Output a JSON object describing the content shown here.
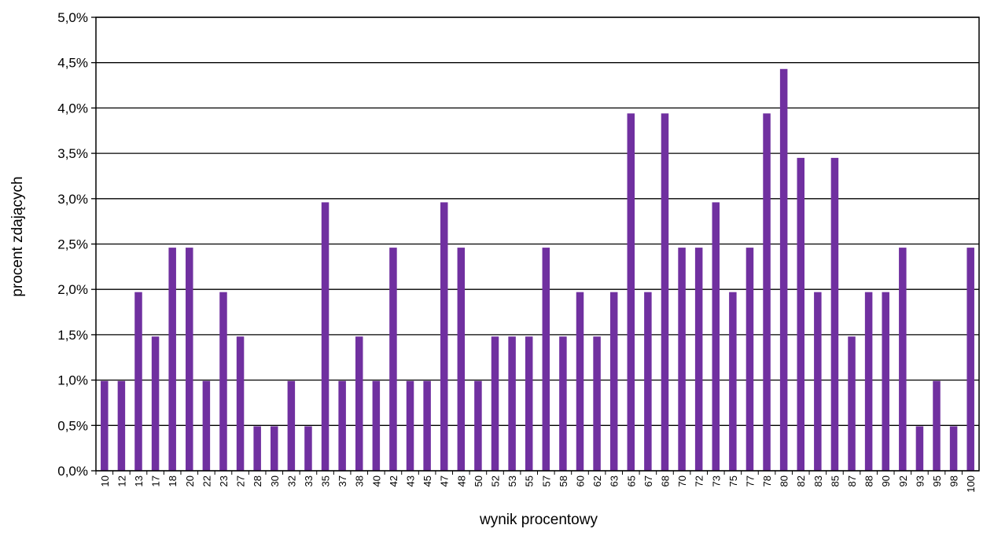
{
  "chart_data": {
    "type": "bar",
    "title": "",
    "xlabel": "wynik procentowy",
    "ylabel": "procent zdających",
    "ylim": [
      0,
      5
    ],
    "y_ticks": [
      0,
      0.5,
      1,
      1.5,
      2,
      2.5,
      3,
      3.5,
      4,
      4.5,
      5
    ],
    "y_tick_labels": [
      "0,0%",
      "0,5%",
      "1,0%",
      "1,5%",
      "2,0%",
      "2,5%",
      "3,0%",
      "3,5%",
      "4,0%",
      "4,5%",
      "5,0%"
    ],
    "grid": true,
    "categories": [
      "10",
      "12",
      "13",
      "17",
      "18",
      "20",
      "22",
      "23",
      "27",
      "28",
      "30",
      "32",
      "33",
      "35",
      "37",
      "38",
      "40",
      "42",
      "43",
      "45",
      "47",
      "48",
      "50",
      "52",
      "53",
      "55",
      "57",
      "58",
      "60",
      "62",
      "63",
      "65",
      "67",
      "68",
      "70",
      "72",
      "73",
      "75",
      "77",
      "78",
      "80",
      "82",
      "83",
      "85",
      "87",
      "88",
      "90",
      "92",
      "93",
      "95",
      "98",
      "100"
    ],
    "values": [
      0.99,
      0.99,
      1.97,
      1.48,
      2.46,
      2.46,
      0.99,
      1.97,
      1.48,
      0.49,
      0.49,
      0.99,
      0.49,
      2.96,
      0.99,
      1.48,
      0.99,
      2.46,
      0.99,
      0.99,
      2.96,
      2.46,
      0.99,
      1.48,
      1.48,
      1.48,
      2.46,
      1.48,
      1.97,
      1.48,
      1.97,
      3.94,
      1.97,
      3.94,
      2.46,
      2.46,
      2.96,
      1.97,
      2.46,
      3.94,
      4.43,
      3.45,
      1.97,
      3.45,
      1.48,
      1.97,
      1.97,
      2.46,
      0.49,
      0.99,
      0.49,
      2.46
    ],
    "bar_color": "#7030a0"
  }
}
